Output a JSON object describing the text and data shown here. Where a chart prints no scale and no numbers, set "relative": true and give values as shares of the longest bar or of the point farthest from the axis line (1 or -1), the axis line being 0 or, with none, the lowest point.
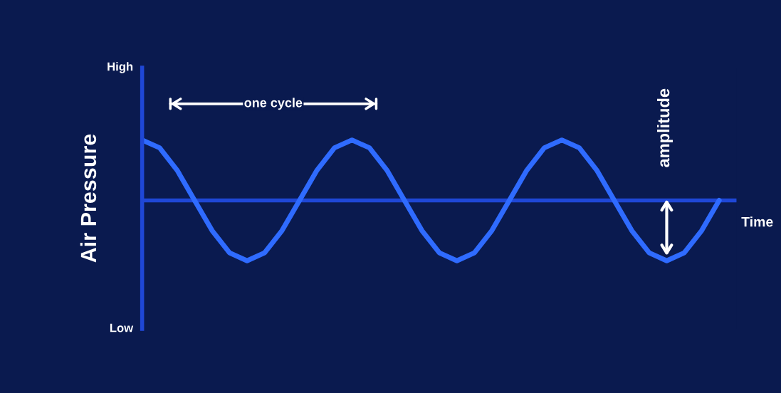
{
  "chart_data": {
    "type": "line",
    "ylabel": "Air Pressure",
    "xlabel": "Time",
    "relative": true,
    "categories": [
      null,
      null,
      null,
      null,
      null,
      null,
      null,
      null,
      null,
      null,
      null,
      null,
      null,
      null,
      null,
      null,
      null,
      null,
      null,
      null,
      null,
      null,
      null,
      null,
      null,
      null,
      null,
      null,
      null,
      null,
      null,
      null,
      null,
      null
    ],
    "series": [
      {
        "color": "#2f6bff",
        "values": [
          1,
          0.87,
          0.5,
          0,
          -0.5,
          -0.87,
          -1,
          -0.87,
          -0.5,
          0,
          0.5,
          0.87,
          1,
          0.87,
          0.5,
          0,
          -0.5,
          -0.87,
          -1,
          -0.87,
          -0.5,
          0,
          0.5,
          0.87,
          1,
          0.87,
          0.5,
          0,
          -0.5,
          -0.87,
          -1,
          -0.87,
          -0.5,
          0
        ]
      }
    ],
    "ref_lines": [
      {
        "axis": "y",
        "value": 0
      }
    ],
    "annotations": [
      "High",
      "Low",
      "one cycle",
      "amplitude"
    ],
    "marker": "none",
    "line_style": "solid"
  }
}
